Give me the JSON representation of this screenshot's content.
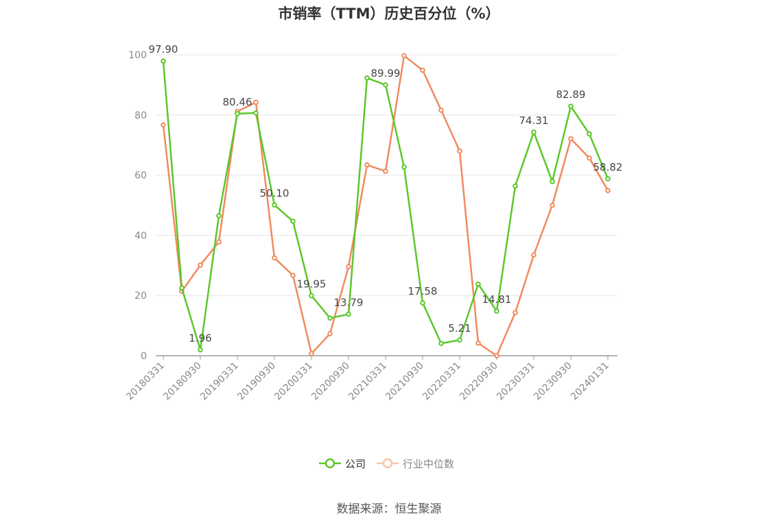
{
  "chart_data": {
    "type": "line",
    "title": "市销率（TTM）历史百分位（%）",
    "source": "数据来源：恒生聚源",
    "ylim": [
      0,
      100
    ],
    "yticks": [
      0,
      20,
      40,
      60,
      80,
      100
    ],
    "x_tick_labels": [
      "20180331",
      "20180930",
      "20190331",
      "20190930",
      "20200331",
      "20200930",
      "20210331",
      "20210930",
      "20220331",
      "20220930",
      "20230331",
      "20230930",
      "20240131"
    ],
    "x": [
      "20180331",
      "20180630",
      "20180930",
      "20181231",
      "20190331",
      "20190630",
      "20190930",
      "20191231",
      "20200331",
      "20200630",
      "20200930",
      "20201231",
      "20210331",
      "20210630",
      "20210930",
      "20211231",
      "20220331",
      "20220630",
      "20220930",
      "20221231",
      "20230331",
      "20230630",
      "20230930",
      "20231231",
      "20240131"
    ],
    "grid": true,
    "legend_position": "bottom",
    "series": [
      {
        "name": "公司",
        "color": "#5ac729",
        "values": [
          97.9,
          22.5,
          1.96,
          46.5,
          80.46,
          80.7,
          50.1,
          44.7,
          19.95,
          12.5,
          13.79,
          92.3,
          89.99,
          62.7,
          17.58,
          4.1,
          5.21,
          23.8,
          14.81,
          56.4,
          74.31,
          57.9,
          82.89,
          73.7,
          58.82
        ],
        "labels": {
          "0": "97.90",
          "2": "1.96",
          "4": "80.46",
          "6": "50.10",
          "8": "19.95",
          "10": "13.79",
          "12": "89.99",
          "14": "17.58",
          "16": "5.21",
          "18": "14.81",
          "20": "74.31",
          "22": "82.89",
          "24": "58.82"
        }
      },
      {
        "name": "行业中位数",
        "color": "#f08a5d",
        "values": [
          76.7,
          21.4,
          30.1,
          37.8,
          81.2,
          84.2,
          32.5,
          26.7,
          0.7,
          7.3,
          29.6,
          63.4,
          61.3,
          99.7,
          94.9,
          81.6,
          68.0,
          4.2,
          0.0,
          14.3,
          33.5,
          50.0,
          72.1,
          65.7,
          54.9
        ]
      }
    ]
  }
}
